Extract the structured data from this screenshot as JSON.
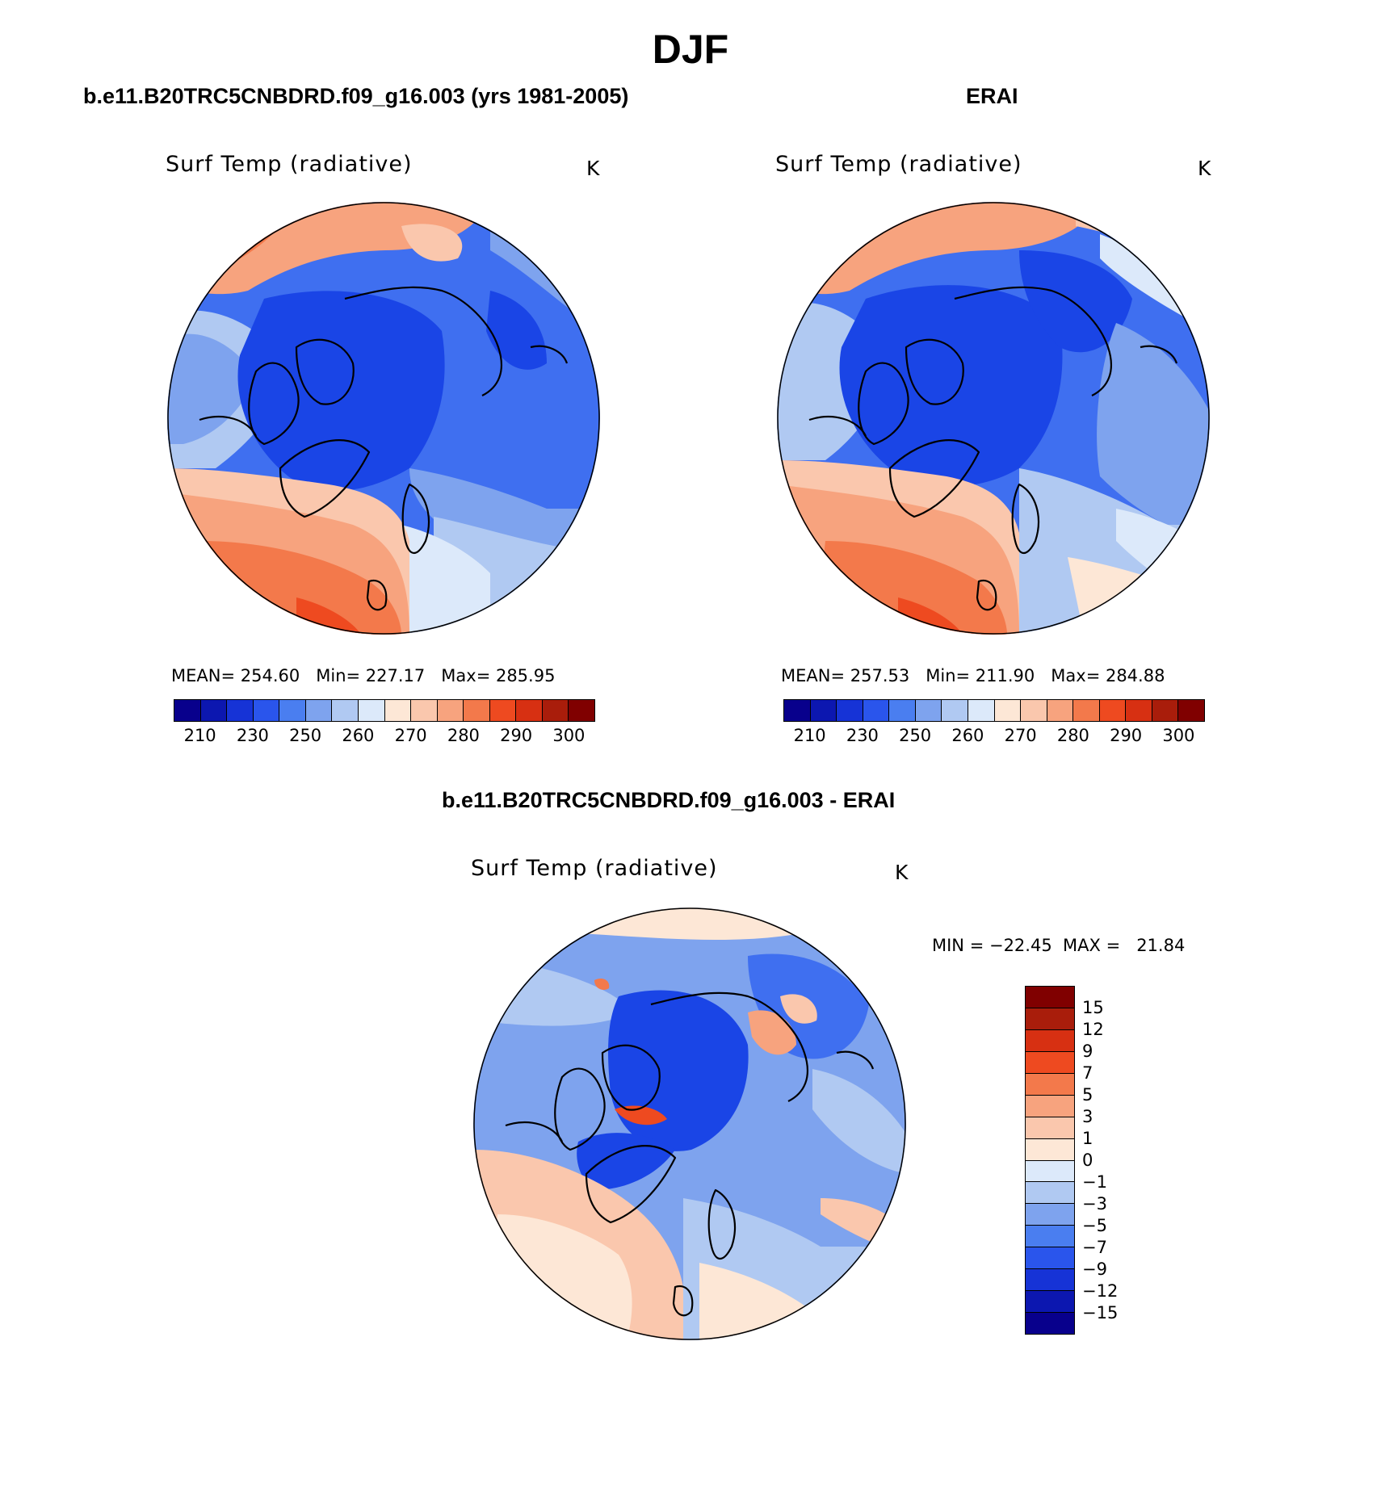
{
  "title": "DJF",
  "panels": {
    "model": {
      "subtitle": "b.e11.B20TRC5CNBDRD.f09_g16.003 (yrs 1981-2005)",
      "plot_title": "Surf Temp (radiative)",
      "units": "K",
      "stats": "MEAN= 254.60   Min= 227.17   Max= 285.95",
      "map": "north-polar-stereographic surface temperature field"
    },
    "obs": {
      "subtitle": "ERAI",
      "plot_title": "Surf Temp (radiative)",
      "units": "K",
      "stats": "MEAN= 257.53   Min= 211.90   Max= 284.88",
      "map": "north-polar-stereographic surface temperature field"
    },
    "diff": {
      "subtitle": "b.e11.B20TRC5CNBDRD.f09_g16.003 - ERAI",
      "plot_title": "Surf Temp (radiative)",
      "units": "K",
      "minmax": "MIN = −22.45  MAX =   21.84",
      "map": "north-polar-stereographic surface temperature difference"
    }
  },
  "colorbar_abs": {
    "colors": [
      "#08008c",
      "#0c17b0",
      "#1633d6",
      "#2a55ec",
      "#4a7ef0",
      "#7ea3ee",
      "#b0c9f2",
      "#dce9fa",
      "#fde7d6",
      "#fac7ad",
      "#f7a37e",
      "#f3794b",
      "#ee4a20",
      "#d73012",
      "#a91d0b",
      "#800000"
    ],
    "labels": [
      "210",
      "230",
      "250",
      "260",
      "270",
      "280",
      "290",
      "300"
    ]
  },
  "colorbar_diff": {
    "colors": [
      "#800000",
      "#a91d0b",
      "#d73012",
      "#ee4a20",
      "#f3794b",
      "#f7a37e",
      "#fac7ad",
      "#fde7d6",
      "#dce9fa",
      "#b0c9f2",
      "#7ea3ee",
      "#4a7ef0",
      "#2a55ec",
      "#1633d6",
      "#0c17b0",
      "#08008c"
    ],
    "labels": [
      "15",
      "12",
      "9",
      "7",
      "5",
      "3",
      "1",
      "0",
      "−1",
      "−3",
      "−5",
      "−7",
      "−9",
      "−12",
      "−15"
    ]
  },
  "map_colors": {
    "deep_blue": "#1a45e6",
    "mid_blue": "#3f6ff0",
    "light_blue": "#7ea3ee",
    "pale_blue": "#b0c9f2",
    "ice_blue": "#dce9fa",
    "cream": "#fde7d6",
    "peach": "#fac7ad",
    "salmon": "#f7a37e",
    "orange": "#f3794b",
    "red_orange": "#ee4a20",
    "land_outline": "#000000"
  }
}
